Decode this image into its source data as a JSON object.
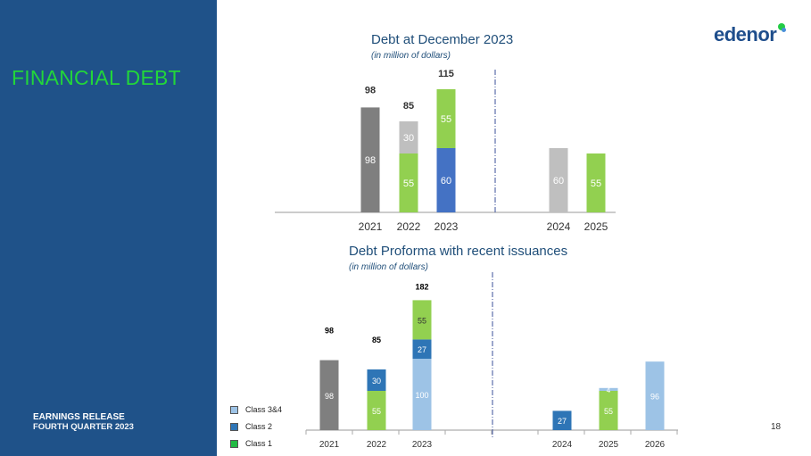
{
  "sidebar": {
    "section_title": "FINANCIAL DEBT",
    "footer_line1": "EARNINGS RELEASE",
    "footer_line2": "FOURTH QUARTER 2023"
  },
  "logo": {
    "text": "edenor"
  },
  "page_number": "18",
  "colors": {
    "sidebar": "#1f5289",
    "dark_gray": "#7f7f7f",
    "light_gray": "#bfbfbf",
    "green": "#92d050",
    "blue": "#4472c4",
    "class2": "#2e75b6",
    "class34": "#9dc3e6"
  },
  "chart_data": [
    {
      "type": "bar",
      "stacked": true,
      "title": "Debt at December 2023",
      "subtitle": "(in million of dollars)",
      "categories": [
        "2021",
        "2022",
        "2023",
        "2024",
        "2025"
      ],
      "divider_after": "2023",
      "bars": [
        {
          "category": "2021",
          "total": "98",
          "segments": [
            {
              "value": 98,
              "color": "#7f7f7f"
            }
          ]
        },
        {
          "category": "2022",
          "total": "85",
          "segments": [
            {
              "value": 55,
              "color": "#92d050"
            },
            {
              "value": 30,
              "color": "#bfbfbf"
            }
          ]
        },
        {
          "category": "2023",
          "total": "115",
          "segments": [
            {
              "value": 60,
              "color": "#4472c4"
            },
            {
              "value": 55,
              "color": "#92d050"
            }
          ]
        },
        {
          "category": "2024",
          "segments": [
            {
              "value": 60,
              "color": "#bfbfbf"
            }
          ]
        },
        {
          "category": "2025",
          "segments": [
            {
              "value": 55,
              "color": "#92d050"
            }
          ]
        }
      ]
    },
    {
      "type": "bar",
      "stacked": true,
      "title": "Debt Proforma with recent issuances",
      "subtitle": "(in million of dollars)",
      "categories": [
        "2021",
        "2022",
        "2023",
        "2024",
        "2025",
        "2026"
      ],
      "divider_after": "2023",
      "legend": [
        {
          "label": "Class 3&4",
          "color": "#9dc3e6"
        },
        {
          "label": "Class 2",
          "color": "#2e75b6"
        },
        {
          "label": "Class 1",
          "color": "#22bb44"
        }
      ],
      "legend_position": "bottom-left",
      "bars": [
        {
          "category": "2021",
          "total": "98",
          "segments": [
            {
              "value": 98,
              "color": "#7f7f7f"
            }
          ]
        },
        {
          "category": "2022",
          "total": "85",
          "segments": [
            {
              "value": 55,
              "color": "#92d050"
            },
            {
              "value": 30,
              "color": "#2e75b6"
            }
          ]
        },
        {
          "category": "2023",
          "total": "182",
          "segments": [
            {
              "value": 100,
              "color": "#9dc3e6"
            },
            {
              "value": 27,
              "color": "#2e75b6"
            },
            {
              "value": 55,
              "color": "#92d050"
            }
          ]
        },
        {
          "category": "2024",
          "segments": [
            {
              "value": 27,
              "color": "#2e75b6"
            }
          ]
        },
        {
          "category": "2025",
          "segments": [
            {
              "value": 55,
              "color": "#92d050"
            },
            {
              "value": 4,
              "color": "#9dc3e6"
            }
          ]
        },
        {
          "category": "2026",
          "segments": [
            {
              "value": 96,
              "color": "#9dc3e6"
            }
          ]
        }
      ]
    }
  ]
}
